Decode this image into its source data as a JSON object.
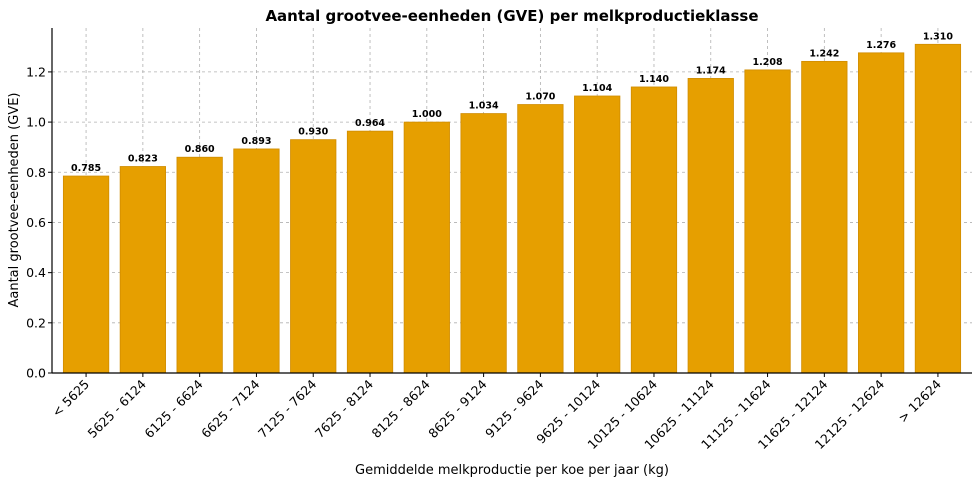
{
  "chart_data": {
    "type": "bar",
    "title": "Aantal grootvee-eenheden (GVE) per melkproductieklasse",
    "xlabel": "Gemiddelde melkproductie per koe per jaar (kg)",
    "ylabel": "Aantal grootvee-eenheden (GVE)",
    "categories": [
      "< 5625",
      "5625 - 6124",
      "6125 - 6624",
      "6625 - 7124",
      "7125 - 7624",
      "7625 - 8124",
      "8125 - 8624",
      "8625 - 9124",
      "9125 - 9624",
      "9625 - 10124",
      "10125 - 10624",
      "10625 - 11124",
      "11125 - 11624",
      "11625 - 12124",
      "12125 - 12624",
      "> 12624"
    ],
    "values": [
      0.785,
      0.823,
      0.86,
      0.893,
      0.93,
      0.964,
      1.0,
      1.034,
      1.07,
      1.104,
      1.14,
      1.174,
      1.208,
      1.242,
      1.276,
      1.31
    ],
    "data_labels": [
      "0.785",
      "0.823",
      "0.860",
      "0.893",
      "0.930",
      "0.964",
      "1.000",
      "1.034",
      "1.070",
      "1.104",
      "1.140",
      "1.174",
      "1.208",
      "1.242",
      "1.276",
      "1.310"
    ],
    "yticks": [
      "0.0",
      "0.2",
      "0.4",
      "0.6",
      "0.8",
      "1.0",
      "1.2"
    ],
    "ylim": [
      0,
      1.375
    ],
    "grid": true,
    "bar_color": "#E69F00",
    "bar_edge_color": "#D08C00"
  }
}
